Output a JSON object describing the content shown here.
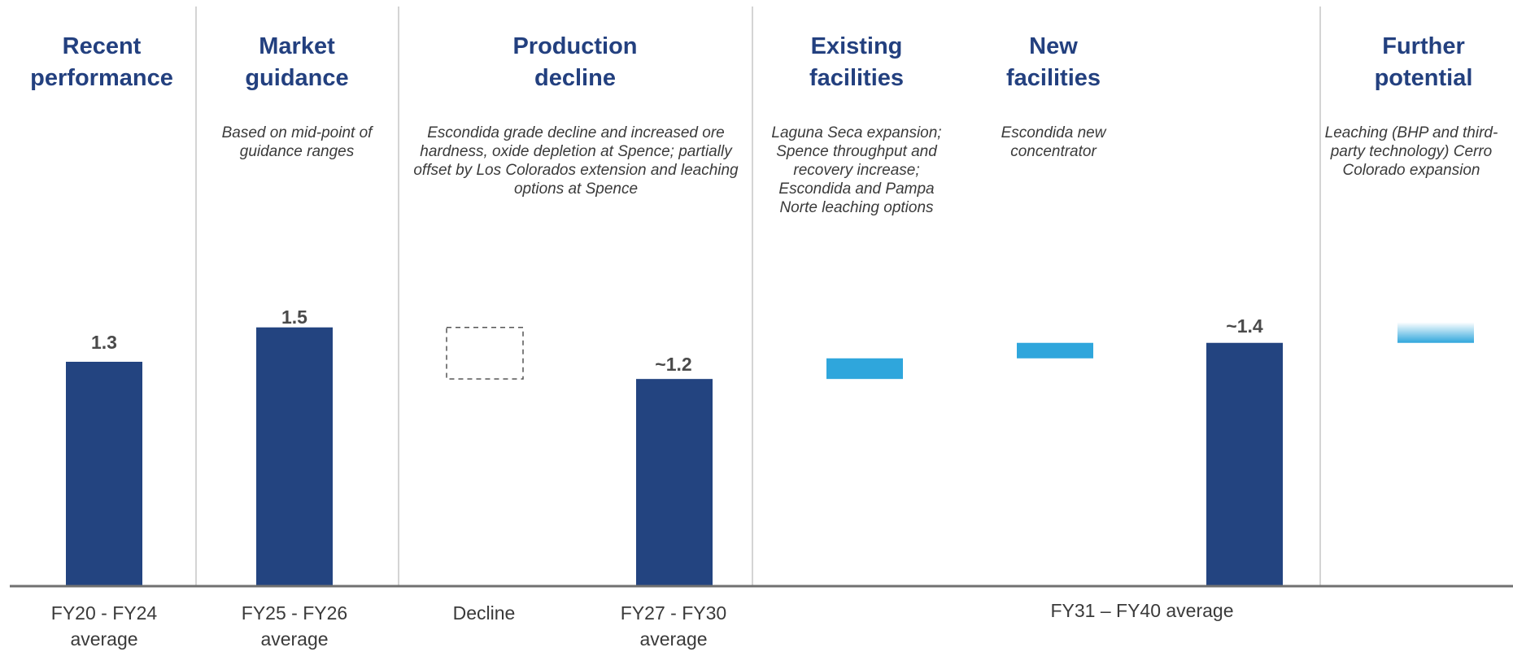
{
  "chart_data": {
    "type": "bar",
    "subtype": "waterfall",
    "title": "",
    "xlabel": "",
    "ylabel": "",
    "ylim": [
      0,
      1.85
    ],
    "grid": false,
    "legend": "none",
    "colors": {
      "bar": "#234480",
      "increment": "#2fa6dc",
      "text_header": "#23407f",
      "axis": "#707070",
      "divider": "#d4d4d4"
    },
    "sections": [
      {
        "key": "recent",
        "header": "Recent\nperformance",
        "description": ""
      },
      {
        "key": "guidance",
        "header": "Market\nguidance",
        "description": "Based on mid-point of guidance ranges"
      },
      {
        "key": "decline",
        "header": "Production\ndecline",
        "description": "Escondida grade decline and increased ore hardness, oxide depletion at Spence; partially offset by Los Colorados extension and leaching options at Spence"
      },
      {
        "key": "existing",
        "header": "Existing\nfacilities",
        "description": "Laguna Seca expansion; Spence throughput and recovery increase; Escondida and Pampa Norte leaching options"
      },
      {
        "key": "new",
        "header": "New\nfacilities",
        "description": "Escondida new concentrator"
      },
      {
        "key": "further",
        "header": "Further\npotential",
        "description": "Leaching (BHP and third-party technology) Cerro Colorado expansion"
      }
    ],
    "bars": [
      {
        "kind": "total",
        "category": "FY20 - FY24\naverage",
        "value": 1.3,
        "label": "1.3"
      },
      {
        "kind": "total",
        "category": "FY25 - FY26\naverage",
        "value": 1.5,
        "label": "1.5"
      },
      {
        "kind": "decrease",
        "category": "Decline",
        "from": 1.5,
        "to": 1.2,
        "label": ""
      },
      {
        "kind": "total",
        "category": "FY27 - FY30\naverage",
        "value": 1.2,
        "label": "~1.2"
      },
      {
        "kind": "increase",
        "category": "",
        "from": 1.2,
        "to": 1.32,
        "label": ""
      },
      {
        "kind": "increase",
        "category": "",
        "from": 1.32,
        "to": 1.41,
        "label": ""
      },
      {
        "kind": "total",
        "category": "",
        "value": 1.41,
        "label": "~1.4"
      },
      {
        "kind": "potential",
        "category": "",
        "from": 1.41,
        "to": 1.53,
        "label": ""
      }
    ],
    "group_label": "FY31 – FY40 average"
  }
}
